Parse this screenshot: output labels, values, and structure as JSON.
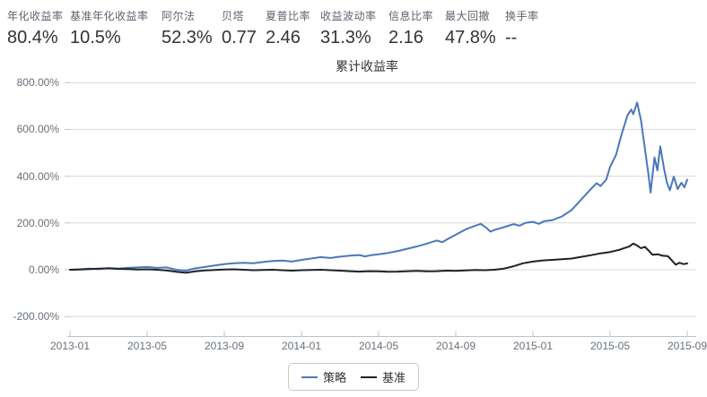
{
  "header": {
    "stats": [
      {
        "label": "年化收益率",
        "value": "80.4%"
      },
      {
        "label": "基准年化收益率",
        "value": "10.5%"
      },
      {
        "label": "阿尔法",
        "value": "52.3%"
      },
      {
        "label": "贝塔",
        "value": "0.77"
      },
      {
        "label": "夏普比率",
        "value": "2.46"
      },
      {
        "label": "收益波动率",
        "value": "31.3%"
      },
      {
        "label": "信息比率",
        "value": "2.16"
      },
      {
        "label": "最大回撤",
        "value": "47.8%"
      },
      {
        "label": "换手率",
        "value": "--"
      }
    ]
  },
  "chart_data": {
    "type": "line",
    "title": "累计收益率",
    "ylabel": "",
    "xlabel": "",
    "ylim": [
      -200,
      800
    ],
    "grid": "horizontal",
    "legend_position": "bottom-center",
    "y_ticks": [
      {
        "label": "800.00%",
        "value": 800
      },
      {
        "label": "600.00%",
        "value": 600
      },
      {
        "label": "400.00%",
        "value": 400
      },
      {
        "label": "200.00%",
        "value": 200
      },
      {
        "label": "0.00%",
        "value": 0
      },
      {
        "label": "-200.00%",
        "value": -200
      }
    ],
    "x_ticks": [
      {
        "label": "2013-01",
        "t": 0
      },
      {
        "label": "2013-05",
        "t": 4
      },
      {
        "label": "2013-09",
        "t": 8
      },
      {
        "label": "2014-01",
        "t": 12
      },
      {
        "label": "2014-05",
        "t": 16
      },
      {
        "label": "2014-09",
        "t": 20
      },
      {
        "label": "2015-01",
        "t": 24
      },
      {
        "label": "2015-05",
        "t": 28
      },
      {
        "label": "2015-09",
        "t": 32
      }
    ],
    "x_unit": "months since 2013-01",
    "series": [
      {
        "name": "策略",
        "color": "#4a78ba",
        "points": [
          [
            0,
            0
          ],
          [
            0.5,
            2
          ],
          [
            1,
            5
          ],
          [
            1.5,
            3
          ],
          [
            2,
            7
          ],
          [
            2.5,
            5
          ],
          [
            3,
            8
          ],
          [
            3.5,
            10
          ],
          [
            4,
            12
          ],
          [
            4.5,
            8
          ],
          [
            5,
            10
          ],
          [
            5.5,
            0
          ],
          [
            6,
            -4
          ],
          [
            6.5,
            6
          ],
          [
            7,
            12
          ],
          [
            7.5,
            18
          ],
          [
            8,
            24
          ],
          [
            8.5,
            28
          ],
          [
            9,
            30
          ],
          [
            9.5,
            28
          ],
          [
            10,
            33
          ],
          [
            10.5,
            37
          ],
          [
            11,
            39
          ],
          [
            11.5,
            35
          ],
          [
            12,
            42
          ],
          [
            12.5,
            48
          ],
          [
            13,
            54
          ],
          [
            13.5,
            50
          ],
          [
            14,
            56
          ],
          [
            14.5,
            60
          ],
          [
            15,
            63
          ],
          [
            15.3,
            57
          ],
          [
            15.6,
            62
          ],
          [
            16,
            66
          ],
          [
            16.5,
            72
          ],
          [
            17,
            80
          ],
          [
            17.5,
            90
          ],
          [
            18,
            100
          ],
          [
            18.5,
            112
          ],
          [
            19,
            125
          ],
          [
            19.3,
            118
          ],
          [
            19.6,
            132
          ],
          [
            20,
            150
          ],
          [
            20.5,
            172
          ],
          [
            21,
            188
          ],
          [
            21.3,
            196
          ],
          [
            21.6,
            178
          ],
          [
            21.8,
            163
          ],
          [
            22,
            170
          ],
          [
            22.5,
            182
          ],
          [
            23,
            195
          ],
          [
            23.3,
            188
          ],
          [
            23.6,
            200
          ],
          [
            24,
            205
          ],
          [
            24.3,
            196
          ],
          [
            24.6,
            208
          ],
          [
            25,
            212
          ],
          [
            25.5,
            228
          ],
          [
            26,
            255
          ],
          [
            26.5,
            300
          ],
          [
            27,
            345
          ],
          [
            27.3,
            370
          ],
          [
            27.5,
            358
          ],
          [
            27.8,
            385
          ],
          [
            28,
            440
          ],
          [
            28.3,
            490
          ],
          [
            28.6,
            580
          ],
          [
            28.9,
            660
          ],
          [
            29.1,
            685
          ],
          [
            29.2,
            665
          ],
          [
            29.4,
            715
          ],
          [
            29.6,
            640
          ],
          [
            29.8,
            520
          ],
          [
            30,
            400
          ],
          [
            30.1,
            330
          ],
          [
            30.3,
            480
          ],
          [
            30.45,
            425
          ],
          [
            30.6,
            528
          ],
          [
            30.8,
            430
          ],
          [
            30.95,
            372
          ],
          [
            31.1,
            340
          ],
          [
            31.3,
            398
          ],
          [
            31.5,
            345
          ],
          [
            31.7,
            372
          ],
          [
            31.85,
            352
          ],
          [
            32,
            385
          ]
        ]
      },
      {
        "name": "基准",
        "color": "#1e2228",
        "points": [
          [
            0,
            0
          ],
          [
            0.5,
            1
          ],
          [
            1,
            3
          ],
          [
            1.5,
            5
          ],
          [
            2,
            6
          ],
          [
            2.5,
            4
          ],
          [
            3,
            3
          ],
          [
            3.5,
            1
          ],
          [
            4,
            2
          ],
          [
            4.5,
            0
          ],
          [
            5,
            -3
          ],
          [
            5.5,
            -9
          ],
          [
            6,
            -13
          ],
          [
            6.5,
            -7
          ],
          [
            7,
            -3
          ],
          [
            7.5,
            -1
          ],
          [
            8,
            1
          ],
          [
            8.5,
            2
          ],
          [
            9,
            0
          ],
          [
            9.5,
            -2
          ],
          [
            10,
            -1
          ],
          [
            10.5,
            0
          ],
          [
            11,
            -2
          ],
          [
            11.5,
            -4
          ],
          [
            12,
            -2
          ],
          [
            12.5,
            -1
          ],
          [
            13,
            0
          ],
          [
            13.5,
            -2
          ],
          [
            14,
            -4
          ],
          [
            14.5,
            -6
          ],
          [
            15,
            -8
          ],
          [
            15.5,
            -6
          ],
          [
            16,
            -7
          ],
          [
            16.5,
            -9
          ],
          [
            17,
            -8
          ],
          [
            17.5,
            -6
          ],
          [
            18,
            -5
          ],
          [
            18.5,
            -7
          ],
          [
            19,
            -6
          ],
          [
            19.5,
            -4
          ],
          [
            20,
            -5
          ],
          [
            20.5,
            -3
          ],
          [
            21,
            -1
          ],
          [
            21.5,
            -2
          ],
          [
            22,
            0
          ],
          [
            22.5,
            5
          ],
          [
            23,
            15
          ],
          [
            23.5,
            28
          ],
          [
            24,
            35
          ],
          [
            24.5,
            40
          ],
          [
            25,
            42
          ],
          [
            25.5,
            45
          ],
          [
            26,
            48
          ],
          [
            26.5,
            55
          ],
          [
            27,
            62
          ],
          [
            27.5,
            70
          ],
          [
            28,
            76
          ],
          [
            28.5,
            86
          ],
          [
            29,
            100
          ],
          [
            29.2,
            112
          ],
          [
            29.4,
            104
          ],
          [
            29.6,
            92
          ],
          [
            29.8,
            98
          ],
          [
            30,
            82
          ],
          [
            30.2,
            64
          ],
          [
            30.5,
            66
          ],
          [
            30.7,
            60
          ],
          [
            31,
            58
          ],
          [
            31.2,
            40
          ],
          [
            31.4,
            22
          ],
          [
            31.6,
            30
          ],
          [
            31.8,
            24
          ],
          [
            32,
            27
          ]
        ]
      }
    ],
    "colors": {
      "gridline": "#d9d9d9",
      "axis_line": "#c0c0c0",
      "tick": "#c0c0c0",
      "axis_text": "#66707a"
    }
  }
}
